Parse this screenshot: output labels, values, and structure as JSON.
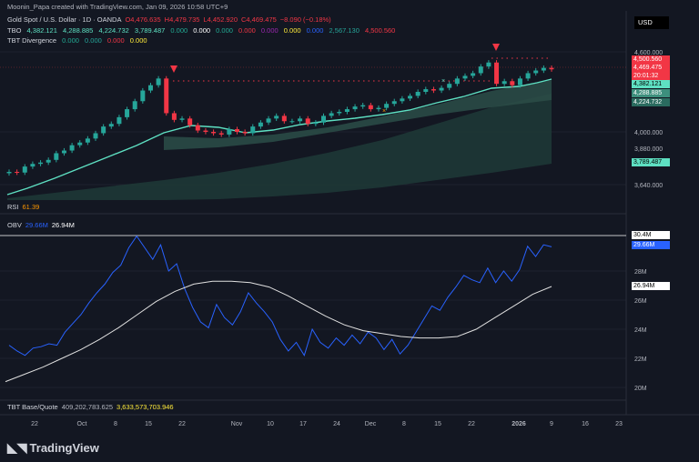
{
  "header": {
    "created": "Moonin_Papa created with TradingView.com, Jan 09, 2026 10:58 UTC+9"
  },
  "legend": {
    "symbol": "Gold Spot / U.S. Dollar · 1D · OANDA",
    "open": "O4,476.635",
    "high": "H4,479.735",
    "low": "L4,452.920",
    "close": "C4,469.475",
    "change": "−8.090 (−0.18%)",
    "tbo_label": "TBO",
    "tbo_vals": [
      "4,382.121",
      "4,288.885",
      "4,224.732",
      "3,789.487",
      "0.000",
      "0.000",
      "0.000",
      "0.000",
      "0.000",
      "0.000",
      "0.000",
      "2,567.130",
      "4,500.560"
    ],
    "tbd_label": "TBT Divergence",
    "tbd_vals": [
      "0.000",
      "0.000",
      "0.000",
      "0.000"
    ],
    "rsi_label": "RSI",
    "rsi_val": "61.39",
    "obv_label": "OBV",
    "obv_val": "29.66M",
    "obv_ma": "26.94M",
    "tbt_label": "TBT Base/Quote",
    "tbt_val1": "409,202,783.625",
    "tbt_val2": "3,633,573,703.946"
  },
  "currency": "USD",
  "price_axis": {
    "ticks": [
      "4,600.000",
      "4,000.000",
      "3,880.000",
      "3,640.000"
    ],
    "tags": [
      {
        "text": "4,500.560",
        "bg": "#f23645",
        "fg": "#ffffff"
      },
      {
        "text": "4,469.475",
        "bg": "#f23645",
        "fg": "#ffffff"
      },
      {
        "text": "20:01:32",
        "bg": "#f23645",
        "fg": "#ffffff"
      },
      {
        "text": "4,382.121",
        "bg": "#5ee0c2",
        "fg": "#000000"
      },
      {
        "text": "4,288.885",
        "bg": "#3d8f7d",
        "fg": "#ffffff"
      },
      {
        "text": "4,224.732",
        "bg": "#2a6b5f",
        "fg": "#ffffff"
      },
      {
        "text": "3,789.487",
        "bg": "#5ee0c2",
        "fg": "#000000"
      }
    ]
  },
  "obv_axis": {
    "ticks": [
      "28M",
      "26M",
      "24M",
      "22M",
      "20M"
    ],
    "tags": [
      {
        "text": "30.4M",
        "bg": "#ffffff",
        "fg": "#000000"
      },
      {
        "text": "29.66M",
        "bg": "#2962ff",
        "fg": "#ffffff"
      },
      {
        "text": "26.94M",
        "bg": "#ffffff",
        "fg": "#000000"
      }
    ]
  },
  "time_axis": {
    "labels": [
      "22",
      "Oct",
      "8",
      "15",
      "22",
      "Nov",
      "10",
      "17",
      "24",
      "Dec",
      "8",
      "15",
      "22",
      "2026",
      "9",
      "16",
      "23"
    ]
  },
  "brand": "TradingView",
  "chart_data": {
    "type": "line",
    "price": {
      "series": [
        {
          "name": "Close",
          "values": [
            3700,
            3695,
            3740,
            3760,
            3770,
            3790,
            3840,
            3860,
            3900,
            3920,
            3950,
            3990,
            4040,
            4060,
            4110,
            4170,
            4230,
            4310,
            4350,
            4400,
            4140,
            4090,
            4100,
            4050,
            4010,
            4000,
            3990,
            3980,
            4020,
            4000,
            3990,
            4040,
            4070,
            4100,
            4120,
            4080,
            4080,
            4100,
            4060,
            4070,
            4120,
            4140,
            4150,
            4170,
            4190,
            4200,
            4170,
            4180,
            4210,
            4230,
            4250,
            4270,
            4300,
            4320,
            4310,
            4330,
            4360,
            4400,
            4420,
            4440,
            4490,
            4520,
            4360,
            4380,
            4350,
            4400,
            4440,
            4460,
            4480,
            4469
          ]
        }
      ]
    },
    "obv": {
      "series": [
        {
          "name": "OBV",
          "values": [
            22.9,
            22.5,
            22.2,
            22.7,
            22.8,
            23.0,
            22.9,
            23.8,
            24.4,
            25.0,
            25.8,
            26.5,
            27.1,
            27.9,
            28.4,
            29.6,
            30.4,
            29.6,
            28.8,
            29.8,
            28.0,
            28.5,
            26.8,
            25.5,
            24.5,
            24.1,
            25.7,
            24.8,
            24.3,
            25.2,
            26.5,
            25.8,
            25.2,
            24.5,
            23.3,
            22.5,
            23.1,
            22.2,
            24.0,
            23.1,
            22.7,
            23.4,
            22.9,
            23.6,
            23.0,
            23.8,
            23.4,
            22.6,
            23.3,
            22.3,
            22.9,
            23.8,
            24.7,
            25.6,
            25.3,
            26.2,
            26.9,
            27.7,
            27.4,
            27.2,
            28.2,
            27.2,
            28.0,
            27.3,
            28.1,
            29.7,
            29.0,
            29.8,
            29.66
          ]
        },
        {
          "name": "OBV MA",
          "values": [
            20.4,
            20.9,
            21.4,
            22.0,
            22.6,
            23.3,
            24.1,
            25.0,
            25.9,
            26.6,
            27.1,
            27.3,
            27.3,
            27.2,
            26.9,
            26.3,
            25.6,
            24.9,
            24.3,
            23.9,
            23.7,
            23.5,
            23.4,
            23.4,
            23.5,
            24.0,
            24.8,
            25.6,
            26.4,
            26.94
          ]
        }
      ]
    },
    "rsi": 61.39,
    "xlabel": "",
    "ylabel": ""
  }
}
